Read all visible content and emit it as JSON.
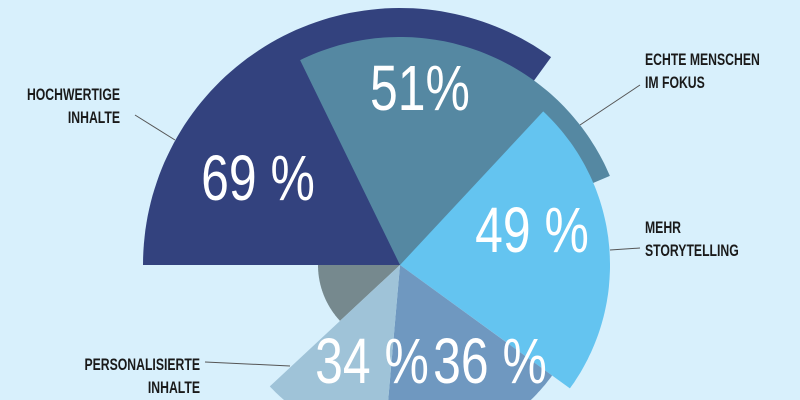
{
  "chart_data": {
    "type": "pie",
    "variant": "polar-area",
    "slices": [
      {
        "label": "HOCHWERTIGE INHALTE",
        "lines": [
          "HOCHWERTIGE",
          "INHALTE"
        ],
        "value": 69,
        "display": "69 %",
        "color": "#33427e"
      },
      {
        "label": "ECHTE MENSCHEN IM FOKUS",
        "lines": [
          "ECHTE MENSCHEN",
          "IM FOKUS"
        ],
        "value": 51,
        "display": "51%",
        "color": "#5588a2"
      },
      {
        "label": "MEHR STORYTELLING",
        "lines": [
          "MEHR",
          "STORYTELLING"
        ],
        "value": 49,
        "display": "49 %",
        "color": "#64c4f0"
      },
      {
        "label": "",
        "lines": [],
        "value": 36,
        "display": "36 %",
        "color": "#6f98c0"
      },
      {
        "label": "PERSONALISIERTE INHALTE",
        "lines": [
          "PERSONALISIERTE",
          "INHALTE"
        ],
        "value": 34,
        "display": "34 %",
        "color": "#9fc3d8"
      },
      {
        "label": "",
        "lines": [],
        "value": null,
        "display": "",
        "color": "#76898e"
      }
    ]
  },
  "colors": {
    "background": "#d8f0fc"
  }
}
